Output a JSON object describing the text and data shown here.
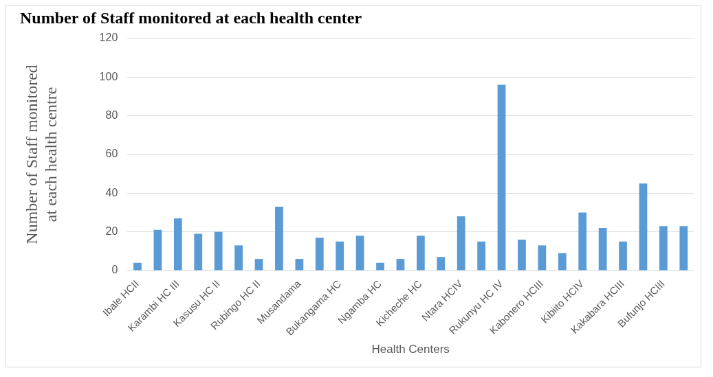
{
  "chart_data": {
    "type": "bar",
    "title": "Number of Staff monitored at each health center",
    "xlabel": "Health Centers",
    "ylabel": "Number of Staff monitored at each health centre",
    "categories": [
      "Ibale HCII",
      null,
      "Karambi HC III",
      null,
      "Kasusu HC II",
      null,
      "Rubingo HC II",
      null,
      "Musandama",
      null,
      "Bukangama HC",
      null,
      "Ngamba HC",
      null,
      "Kicheche HC",
      null,
      "Ntara HCIV",
      null,
      "Rukunyu HC IV",
      null,
      "Kabonero HCIII",
      null,
      "Kibiito HCIV",
      null,
      "Kakabara HCIII",
      null,
      "Bufunjo HCIII",
      null
    ],
    "values": [
      4,
      21,
      27,
      19,
      20,
      13,
      6,
      33,
      6,
      17,
      15,
      18,
      4,
      6,
      18,
      7,
      28,
      15,
      96,
      16,
      13,
      9,
      30,
      22,
      15,
      45,
      23,
      23
    ],
    "color": "#5b9bd5",
    "ylim": [
      0,
      120
    ],
    "yticks": [
      0,
      20,
      40,
      60,
      80,
      100,
      120
    ],
    "grid": "y",
    "legend": false
  }
}
